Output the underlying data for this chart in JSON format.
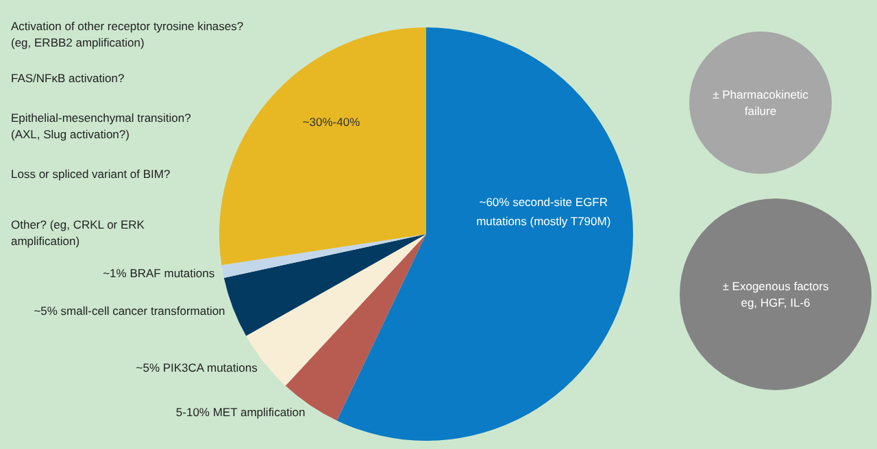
{
  "chart_data": {
    "type": "pie",
    "categories": [
      "~60% second-site EGFR\nmutations (mostly T790M)",
      "5-10% MET amplification",
      "~5% PIK3CA mutations",
      "~5% small-cell cancer transformation",
      "~1% BRAF mutations",
      "~30%-40%"
    ],
    "values": [
      57.1,
      4.8,
      4.9,
      4.8,
      1.0,
      27.4
    ],
    "colors": [
      "#0a7bc4",
      "#b85c52",
      "#f8eed6",
      "#023a62",
      "#c3d7ea",
      "#e7b824"
    ],
    "annotations": [
      "Activation of other receptor tyrosine kinases?\n(eg, ERBB2 amplification)",
      "FAS/NFκB activation?",
      "Epithelial-mesenchymal transition?\n(AXL, Slug activation?)",
      "Loss or spliced variant of BIM?",
      "Other? (eg, CRKL or ERK\namplification)",
      "± Pharmacokinetic\nfailure",
      "± Exogenous factors\neg, HGF, IL-6"
    ]
  }
}
